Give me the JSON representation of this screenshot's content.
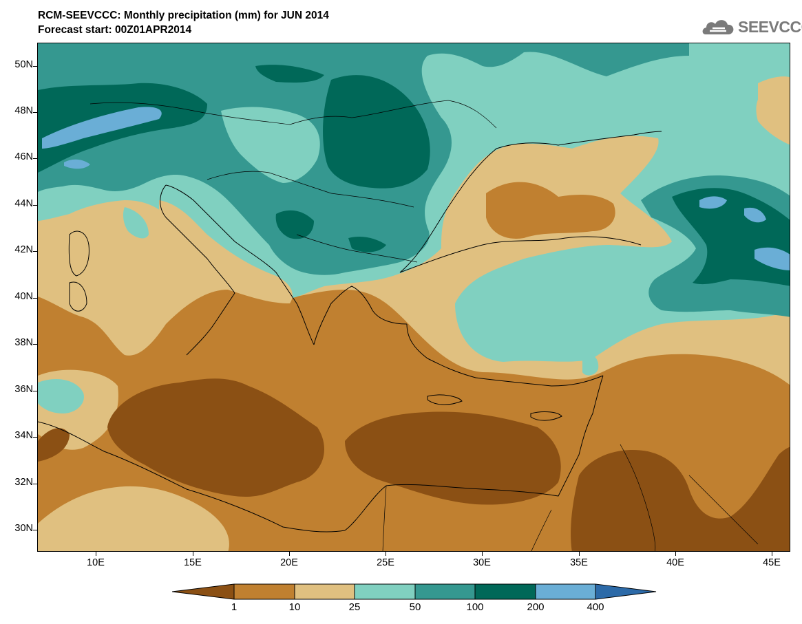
{
  "title": {
    "line1": "RCM-SEEVCCC: Monthly precipitation (mm) for JUN 2014",
    "line2": "Forecast start: 00Z01APR2014"
  },
  "logo": {
    "text": "SEEVCCC",
    "icon": "cloud-logo-icon"
  },
  "axes": {
    "lat_labels": [
      "50N",
      "48N",
      "46N",
      "44N",
      "42N",
      "40N",
      "38N",
      "36N",
      "34N",
      "32N",
      "30N"
    ],
    "lon_labels": [
      "10E",
      "15E",
      "20E",
      "25E",
      "30E",
      "35E",
      "40E",
      "45E"
    ]
  },
  "colorbar": {
    "labels": [
      "1",
      "10",
      "25",
      "50",
      "100",
      "200",
      "400"
    ],
    "colors": [
      "#8b5014",
      "#c08030",
      "#e0c080",
      "#80d0c0",
      "#359890",
      "#006858",
      "#6aaed6",
      "#2c6aa8"
    ]
  }
}
